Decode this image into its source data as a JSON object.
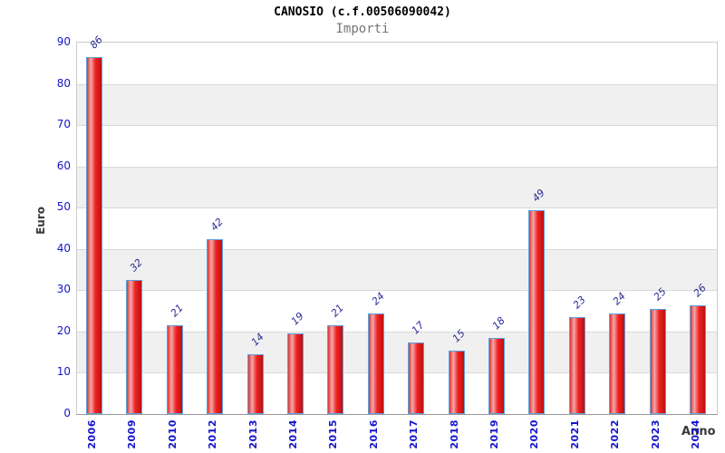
{
  "title": "CANOSIO (c.f.00506090042)",
  "subtitle": "Importi",
  "chart_data": {
    "type": "bar",
    "title": "CANOSIO (c.f.00506090042)",
    "subtitle": "Importi",
    "xlabel": "Anno",
    "ylabel": "Euro",
    "categories": [
      "2006",
      "2009",
      "2010",
      "2012",
      "2013",
      "2014",
      "2015",
      "2016",
      "2017",
      "2018",
      "2019",
      "2020",
      "2021",
      "2022",
      "2023",
      "2024"
    ],
    "values": [
      86,
      32,
      21,
      42,
      14,
      19,
      21,
      24,
      17,
      15,
      18,
      49,
      23,
      24,
      25,
      26
    ],
    "ylim": [
      0,
      90
    ],
    "yticks": [
      0,
      10,
      20,
      30,
      40,
      50,
      60,
      70,
      80,
      90
    ],
    "grid": "horizontal",
    "background_bands": "alternating-gray",
    "legend": "none"
  },
  "colors": {
    "bar_fill": "#ee2222",
    "bar_fill_left": "#dd3333",
    "bar_fill_highlight": "#f5a8a8",
    "bar_fill_dark": "#bb1111",
    "bar_border": "#5da2e0",
    "value_label": "#2a2a94",
    "axis_tick_label": "#1414cc",
    "band_gray": "#f0f0f0",
    "gridline": "#d9d9d9",
    "axis_line": "#999999",
    "subtitle_text": "#757575",
    "axis_title_text": "#3a3a3a"
  }
}
